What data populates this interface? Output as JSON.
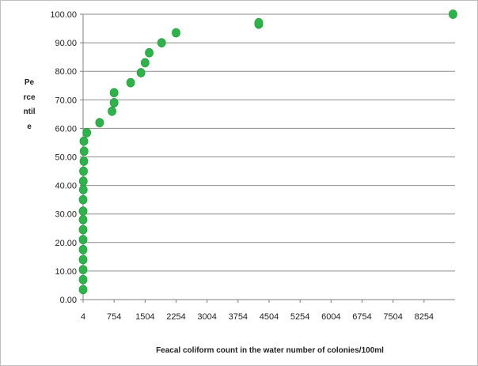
{
  "chart_data": {
    "type": "scatter",
    "title": "",
    "xlabel": "Feacal coliform count in the water number of colonies/100ml",
    "ylabel": "Percentile",
    "x_ticks": [
      4,
      754,
      1504,
      2254,
      3004,
      3754,
      4504,
      5254,
      6004,
      6754,
      7504,
      8254
    ],
    "y_ticks": [
      "0.00",
      "10.00",
      "20.00",
      "30.00",
      "40.00",
      "50.00",
      "60.00",
      "70.00",
      "80.00",
      "90.00",
      "100.00"
    ],
    "xlim": [
      4,
      9000
    ],
    "ylim": [
      0,
      100
    ],
    "grid": "horizontal",
    "marker_color": "#2db34a",
    "series": [
      {
        "points": [
          [
            4,
            3.5
          ],
          [
            4,
            7.0
          ],
          [
            4,
            10.5
          ],
          [
            4,
            14.0
          ],
          [
            4,
            17.5
          ],
          [
            4,
            21.0
          ],
          [
            4,
            24.5
          ],
          [
            4,
            28.0
          ],
          [
            4,
            31.0
          ],
          [
            4,
            35.0
          ],
          [
            9,
            38.5
          ],
          [
            9,
            41.5
          ],
          [
            14,
            45.0
          ],
          [
            23,
            48.5
          ],
          [
            28,
            52.0
          ],
          [
            23,
            55.5
          ],
          [
            93,
            58.5
          ],
          [
            404,
            62.0
          ],
          [
            704,
            66.0
          ],
          [
            754,
            69.0
          ],
          [
            754,
            72.5
          ],
          [
            1154,
            76.0
          ],
          [
            1404,
            79.5
          ],
          [
            1504,
            83.0
          ],
          [
            1604,
            86.5
          ],
          [
            1904,
            90.0
          ],
          [
            2254,
            93.5
          ],
          [
            4254,
            96.5
          ],
          [
            4254,
            97.0
          ],
          [
            8954,
            100.0
          ]
        ]
      }
    ]
  }
}
